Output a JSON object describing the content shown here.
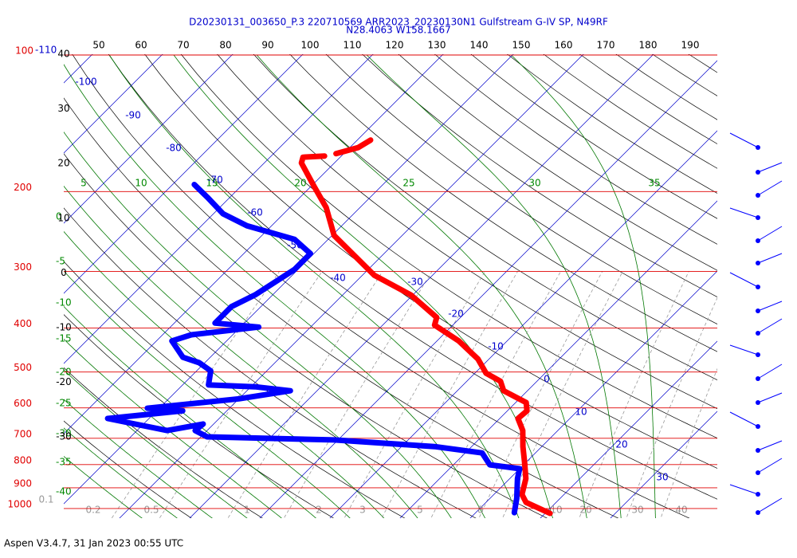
{
  "chart_data": {
    "type": "skewt",
    "title": "D20230131_003650_P.3 220710569 ARR2023_20230130N1 Gulfstream G-IV SP, N49RF",
    "subtitle": "N28.4063 W158.1667",
    "footer": "Aspen V3.4.7, 31 Jan 2023  00:55 UTC",
    "y_scale": "log",
    "ylim": [
      1050,
      100
    ],
    "yticks": [
      100,
      200,
      300,
      400,
      500,
      600,
      700,
      800,
      900,
      1000
    ],
    "isotherms": [
      -110,
      -100,
      -90,
      -80,
      -70,
      -60,
      -50,
      -40,
      -30,
      -20,
      -10,
      0,
      10,
      20,
      30
    ],
    "top_labels": [
      50,
      60,
      70,
      80,
      90,
      100,
      110,
      120,
      130,
      140,
      150,
      160,
      170,
      180,
      190
    ],
    "height_labels": [
      40,
      30,
      20,
      10,
      0,
      -10,
      -20,
      -30
    ],
    "moist_adiabat_labels_top": [
      5,
      10,
      15,
      20,
      25,
      30,
      35
    ],
    "moist_adiabat_labels_left": [
      0,
      -5,
      -10,
      -15,
      -20,
      -25,
      -30,
      -35,
      -40
    ],
    "mixing_ratios": [
      0.1,
      0.2,
      0.5,
      1,
      2,
      3,
      5,
      8,
      10,
      20,
      30,
      40
    ],
    "series": [
      {
        "color": "#ff0000",
        "pressure": [
          1025,
          969,
          931,
          859,
          791,
          730,
          673,
          633,
          609,
          584,
          550,
          524,
          503,
          468,
          427,
          394,
          379,
          338,
          306,
          250,
          217,
          196,
          173,
          168,
          167,
          null,
          165,
          160,
          154
        ],
        "values": [
          20.7,
          15.7,
          14.0,
          12.3,
          9.8,
          7.3,
          5.0,
          2.6,
          2.8,
          1.5,
          -3.4,
          -5.2,
          -8.4,
          -11.6,
          -16.9,
          -22.6,
          -23.4,
          -30.3,
          -38.3,
          -49.7,
          -54.8,
          -59.3,
          -64.7,
          -65.3,
          -62.4,
          null,
          -61.1,
          -58.8,
          -58.1
        ]
      },
      {
        "color": "#0000ff",
        "pressure": [
          1021,
          949,
          859,
          817,
          801,
          754,
          730,
          706,
          695,
          673,
          651,
          673,
          633,
          609,
          601,
          573,
          550,
          539,
          534,
          497,
          477,
          464,
          427,
          414,
          398,
          390,
          359,
          338,
          297,
          274,
          255,
          238,
          224,
          206,
          193
        ],
        "values": [
          15.5,
          13.8,
          11.1,
          10.0,
          5.2,
          2.4,
          -5.3,
          -20.5,
          -39.1,
          -41.7,
          -41.5,
          -45.7,
          -55.9,
          -46.3,
          -51.7,
          -40.0,
          -33.8,
          -39.4,
          -46.3,
          -48.0,
          -50.8,
          -53.9,
          -57.8,
          -55.9,
          -47.4,
          -54.2,
          -54.2,
          -52.5,
          -50.5,
          -50.5,
          -54.8,
          -63.5,
          -68.6,
          -73.2,
          -76.9
        ]
      }
    ]
  }
}
